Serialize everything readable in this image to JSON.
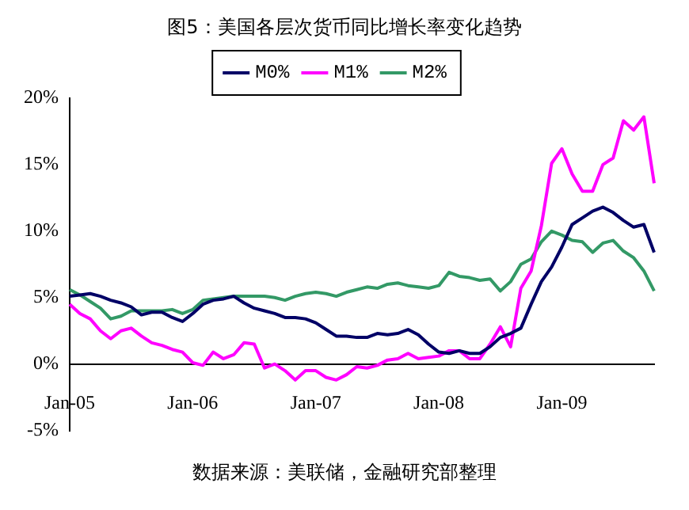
{
  "chart_data": {
    "type": "line",
    "title": "图5：美国各层次货币同比增长率变化趋势",
    "categories": [
      "Jan-05",
      null,
      null,
      null,
      null,
      null,
      null,
      null,
      null,
      null,
      null,
      null,
      "Jan-06",
      null,
      null,
      null,
      null,
      null,
      null,
      null,
      null,
      null,
      null,
      null,
      "Jan-07",
      null,
      null,
      null,
      null,
      null,
      null,
      null,
      null,
      null,
      null,
      null,
      "Jan-08",
      null,
      null,
      null,
      null,
      null,
      null,
      null,
      null,
      null,
      null,
      null,
      "Jan-09",
      null,
      null,
      null,
      null,
      null,
      null,
      null,
      null,
      null
    ],
    "series": [
      {
        "name": "M0%",
        "color": "#000066",
        "values": [
          5.1,
          5.2,
          5.3,
          5.1,
          4.8,
          4.6,
          4.3,
          3.7,
          3.9,
          3.9,
          3.5,
          3.2,
          3.8,
          4.5,
          4.8,
          4.9,
          5.1,
          4.6,
          4.2,
          4.0,
          3.8,
          3.5,
          3.5,
          3.4,
          3.1,
          2.6,
          2.1,
          2.1,
          2.0,
          2.0,
          2.3,
          2.2,
          2.3,
          2.6,
          2.2,
          1.5,
          0.9,
          0.8,
          1.0,
          0.8,
          0.8,
          1.3,
          2.0,
          2.3,
          2.7,
          4.5,
          6.2,
          7.3,
          8.8,
          10.5,
          11.0,
          11.5,
          11.8,
          11.4,
          10.8,
          10.3,
          10.5,
          8.4
        ]
      },
      {
        "name": "M1%",
        "color": "#ff00ff",
        "values": [
          4.5,
          3.8,
          3.4,
          2.5,
          1.9,
          2.5,
          2.7,
          2.1,
          1.6,
          1.4,
          1.1,
          0.9,
          0.1,
          -0.1,
          0.9,
          0.4,
          0.7,
          1.6,
          1.5,
          -0.3,
          0.0,
          -0.5,
          -1.2,
          -0.5,
          -0.5,
          -1.0,
          -1.2,
          -0.8,
          -0.2,
          -0.3,
          -0.1,
          0.3,
          0.4,
          0.8,
          0.4,
          0.5,
          0.6,
          1.0,
          1.0,
          0.4,
          0.4,
          1.5,
          2.8,
          1.3,
          5.7,
          7.0,
          10.4,
          15.1,
          16.2,
          14.3,
          13.0,
          13.0,
          15.0,
          15.5,
          18.3,
          17.6,
          18.6,
          13.6
        ]
      },
      {
        "name": "M2%",
        "color": "#339966",
        "values": [
          5.6,
          5.2,
          4.7,
          4.2,
          3.4,
          3.6,
          4.0,
          4.0,
          4.0,
          4.0,
          4.1,
          3.8,
          4.1,
          4.8,
          4.9,
          5.0,
          5.1,
          5.1,
          5.1,
          5.1,
          5.0,
          4.8,
          5.1,
          5.3,
          5.4,
          5.3,
          5.1,
          5.4,
          5.6,
          5.8,
          5.7,
          6.0,
          6.1,
          5.9,
          5.8,
          5.7,
          5.9,
          6.9,
          6.6,
          6.5,
          6.3,
          6.4,
          5.5,
          6.2,
          7.5,
          7.9,
          9.2,
          10.0,
          9.7,
          9.3,
          9.2,
          8.4,
          9.1,
          9.3,
          8.5,
          8.0,
          7.0,
          5.5
        ]
      }
    ],
    "ylim": [
      -5,
      20
    ],
    "yticks": [
      {
        "value": -5,
        "label": "-5%"
      },
      {
        "value": 0,
        "label": "0%"
      },
      {
        "value": 5,
        "label": "5%"
      },
      {
        "value": 10,
        "label": "10%"
      },
      {
        "value": 15,
        "label": "15%"
      },
      {
        "value": 20,
        "label": "20%"
      }
    ],
    "grid": false,
    "legend": "top",
    "marker": "none",
    "line_style": "solid",
    "annotations": [
      "数据来源：美联储，金融研究部整理"
    ]
  }
}
